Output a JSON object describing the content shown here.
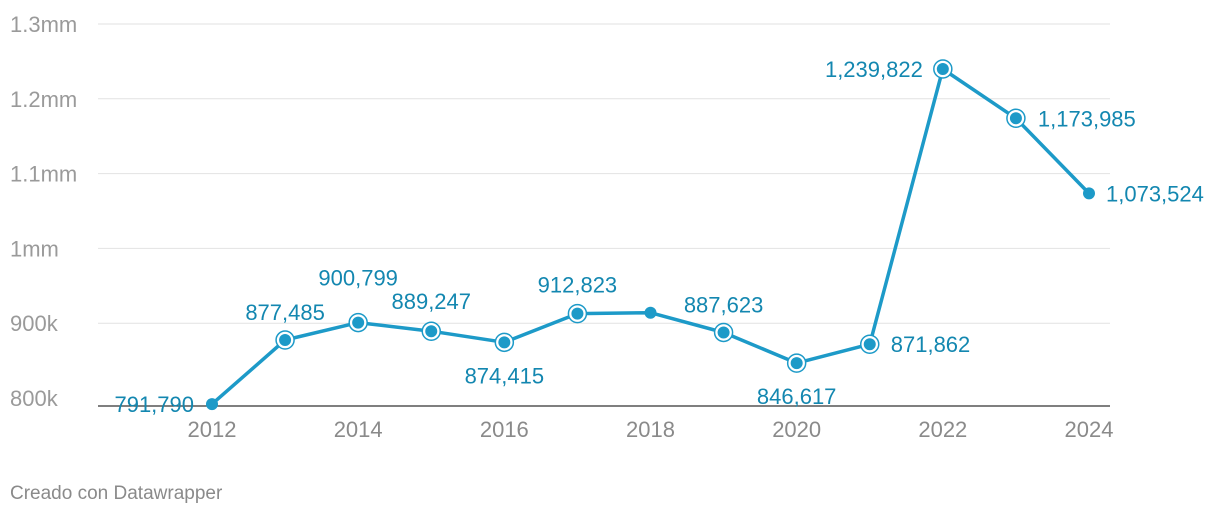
{
  "chart_data": {
    "type": "line",
    "x": [
      2012,
      2013,
      2014,
      2015,
      2016,
      2017,
      2018,
      2019,
      2020,
      2021,
      2022,
      2023,
      2024
    ],
    "series": [
      {
        "values": [
          791790,
          877485,
          900799,
          889247,
          874415,
          912823,
          914000,
          887623,
          846617,
          871862,
          1239822,
          1173985,
          1073524
        ],
        "labels": [
          "791,790",
          "877,485",
          "900,799",
          "889,247",
          "874,415",
          "912,823",
          "",
          "887,623",
          "846,617",
          "871,862",
          "1,239,822",
          "1,173,985",
          "1,073,524"
        ],
        "highlighted": [
          false,
          true,
          true,
          true,
          true,
          true,
          false,
          true,
          true,
          true,
          true,
          true,
          false
        ]
      }
    ],
    "ylim": [
      800000,
      1300000
    ],
    "yticks": [
      {
        "value": 800000,
        "label": "800k"
      },
      {
        "value": 900000,
        "label": "900k"
      },
      {
        "value": 1000000,
        "label": "1mm"
      },
      {
        "value": 1100000,
        "label": "1.1mm"
      },
      {
        "value": 1200000,
        "label": "1.2mm"
      },
      {
        "value": 1300000,
        "label": "1.3mm"
      }
    ],
    "xticks": [
      2012,
      2014,
      2016,
      2018,
      2020,
      2022,
      2024
    ],
    "xlim": [
      2012,
      2024
    ],
    "grid": true,
    "colors": {
      "line": "#1d9ac8",
      "label": "#1387b0",
      "grid": "#e2e2e2",
      "axis": "#333333"
    }
  },
  "footer": {
    "credit": "Creado con Datawrapper"
  }
}
